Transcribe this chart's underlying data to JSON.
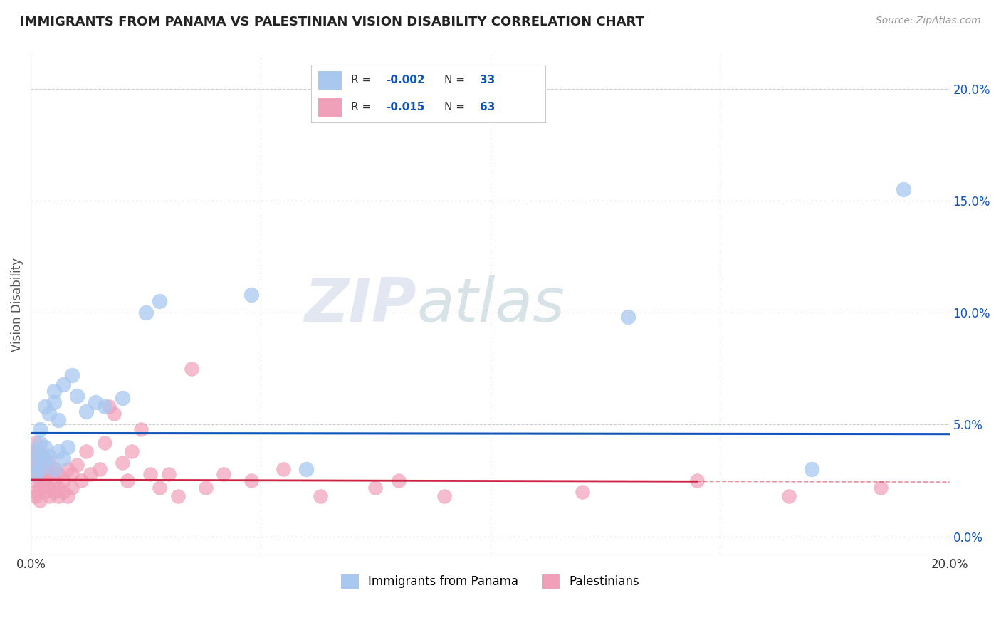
{
  "title": "IMMIGRANTS FROM PANAMA VS PALESTINIAN VISION DISABILITY CORRELATION CHART",
  "source": "Source: ZipAtlas.com",
  "ylabel": "Vision Disability",
  "xlim": [
    0.0,
    0.2
  ],
  "ylim": [
    -0.008,
    0.215
  ],
  "yticks": [
    0.0,
    0.05,
    0.1,
    0.15,
    0.2
  ],
  "xticks": [
    0.0,
    0.05,
    0.1,
    0.15,
    0.2
  ],
  "xtick_labels": [
    "0.0%",
    "",
    "",
    "",
    "20.0%"
  ],
  "ytick_labels_right": [
    "0.0%",
    "5.0%",
    "10.0%",
    "15.0%",
    "20.0%"
  ],
  "legend_labels": [
    "Immigrants from Panama",
    "Palestinians"
  ],
  "r_panama": -0.002,
  "n_panama": 33,
  "r_palestinians": -0.015,
  "n_palestinians": 63,
  "color_panama": "#a8c8f0",
  "color_palestinians": "#f0a0b8",
  "line_color_panama": "#1155bb",
  "line_color_palestinians": "#cc2244",
  "watermark_zip": "ZIP",
  "watermark_atlas": "atlas",
  "background_color": "#ffffff",
  "grid_color": "#cccccc",
  "panama_line_y": 0.046,
  "palestinians_line_y": 0.025,
  "palestinians_line_solid_end": 0.145,
  "panama_x": [
    0.001,
    0.001,
    0.001,
    0.002,
    0.002,
    0.002,
    0.002,
    0.003,
    0.003,
    0.003,
    0.004,
    0.004,
    0.005,
    0.005,
    0.005,
    0.006,
    0.006,
    0.007,
    0.007,
    0.008,
    0.009,
    0.01,
    0.012,
    0.014,
    0.016,
    0.02,
    0.025,
    0.028,
    0.048,
    0.06,
    0.13,
    0.17,
    0.19
  ],
  "panama_y": [
    0.028,
    0.032,
    0.038,
    0.03,
    0.036,
    0.042,
    0.048,
    0.034,
    0.04,
    0.058,
    0.036,
    0.055,
    0.03,
    0.06,
    0.065,
    0.038,
    0.052,
    0.035,
    0.068,
    0.04,
    0.072,
    0.063,
    0.056,
    0.06,
    0.058,
    0.062,
    0.1,
    0.105,
    0.108,
    0.03,
    0.098,
    0.03,
    0.155
  ],
  "palestinians_x": [
    0.001,
    0.001,
    0.001,
    0.001,
    0.001,
    0.001,
    0.001,
    0.001,
    0.002,
    0.002,
    0.002,
    0.002,
    0.002,
    0.002,
    0.003,
    0.003,
    0.003,
    0.003,
    0.004,
    0.004,
    0.004,
    0.004,
    0.005,
    0.005,
    0.005,
    0.006,
    0.006,
    0.006,
    0.007,
    0.007,
    0.008,
    0.008,
    0.009,
    0.009,
    0.01,
    0.011,
    0.012,
    0.013,
    0.015,
    0.016,
    0.017,
    0.018,
    0.02,
    0.021,
    0.022,
    0.024,
    0.026,
    0.028,
    0.03,
    0.032,
    0.035,
    0.038,
    0.042,
    0.048,
    0.055,
    0.063,
    0.075,
    0.08,
    0.09,
    0.12,
    0.145,
    0.165,
    0.185
  ],
  "palestinians_y": [
    0.02,
    0.025,
    0.028,
    0.032,
    0.035,
    0.038,
    0.042,
    0.018,
    0.022,
    0.026,
    0.03,
    0.034,
    0.038,
    0.016,
    0.02,
    0.025,
    0.03,
    0.035,
    0.018,
    0.022,
    0.028,
    0.033,
    0.02,
    0.025,
    0.03,
    0.018,
    0.022,
    0.028,
    0.02,
    0.025,
    0.018,
    0.03,
    0.022,
    0.028,
    0.032,
    0.025,
    0.038,
    0.028,
    0.03,
    0.042,
    0.058,
    0.055,
    0.033,
    0.025,
    0.038,
    0.048,
    0.028,
    0.022,
    0.028,
    0.018,
    0.075,
    0.022,
    0.028,
    0.025,
    0.03,
    0.018,
    0.022,
    0.025,
    0.018,
    0.02,
    0.025,
    0.018,
    0.022
  ]
}
